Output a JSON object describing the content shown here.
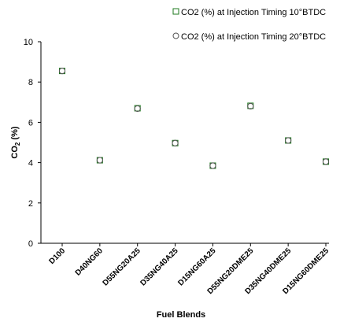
{
  "chart_data": {
    "type": "scatter",
    "categories": [
      "D100",
      "D40NG60",
      "D55NG20A25",
      "D35NG40A25",
      "D15NG60A25",
      "D55NG20DME25",
      "D35NG40DME25",
      "D15NG60DME25"
    ],
    "series": [
      {
        "name": "CO2 (%) at Injection Timing 10°BTDC",
        "marker": "square",
        "color": "#1e7a1e",
        "values": [
          8.55,
          4.12,
          6.7,
          4.97,
          3.85,
          6.82,
          5.1,
          4.05
        ]
      },
      {
        "name": "CO2 (%) at Injection Timing 20°BTDC",
        "marker": "circle",
        "color": "#555555",
        "values": [
          8.55,
          4.12,
          6.68,
          4.97,
          3.85,
          6.8,
          5.1,
          4.05
        ]
      }
    ],
    "xlabel": "Fuel Blends",
    "ylabel_main": "CO",
    "ylabel_sub": "2",
    "ylabel_unit": " (%)",
    "ylim": [
      0,
      10
    ],
    "yticks": [
      "0",
      "2",
      "4",
      "6",
      "8",
      "10"
    ],
    "grid": false,
    "legend_position": "top-right"
  }
}
